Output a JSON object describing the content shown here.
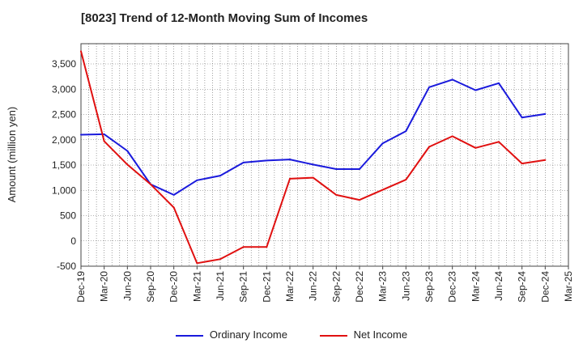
{
  "chart_data": {
    "type": "line",
    "title": "[8023]  Trend of 12-Month Moving Sum of Incomes",
    "xlabel": "",
    "ylabel": "Amount (million yen)",
    "ylim": [
      -500,
      3900
    ],
    "yticks": [
      -500,
      0,
      500,
      1000,
      1500,
      2000,
      2500,
      3000,
      3500
    ],
    "ytick_labels": [
      "-500",
      "0",
      "500",
      "1,000",
      "1,500",
      "2,000",
      "2,500",
      "3,000",
      "3,500"
    ],
    "categories": [
      "Dec-19",
      "Mar-20",
      "Jun-20",
      "Sep-20",
      "Dec-20",
      "Mar-21",
      "Jun-21",
      "Sep-21",
      "Dec-21",
      "Mar-22",
      "Jun-22",
      "Sep-22",
      "Dec-22",
      "Mar-23",
      "Jun-23",
      "Sep-23",
      "Dec-23",
      "Mar-24",
      "Jun-24",
      "Sep-24",
      "Dec-24",
      "Mar-25"
    ],
    "grid": true,
    "legend_position": "bottom",
    "series": [
      {
        "name": "Ordinary Income",
        "color": "#1a1adc",
        "values": [
          2100,
          2110,
          1780,
          1120,
          910,
          1200,
          1290,
          1550,
          1590,
          1610,
          1510,
          1420,
          1420,
          1930,
          2170,
          3040,
          3190,
          2980,
          3120,
          2440,
          2510,
          null
        ]
      },
      {
        "name": "Net Income",
        "color": "#e01010",
        "values": [
          3750,
          1970,
          1510,
          1120,
          660,
          -440,
          -360,
          -120,
          -120,
          1230,
          1250,
          910,
          810,
          1010,
          1210,
          1860,
          2070,
          1840,
          1960,
          1530,
          1600,
          null
        ]
      }
    ]
  }
}
